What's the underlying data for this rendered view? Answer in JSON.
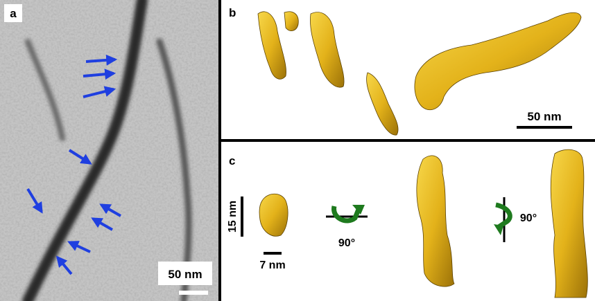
{
  "panels": [
    {
      "label": "a",
      "scale_bar": "50 nm"
    },
    {
      "label": "b",
      "scale_bar": "50 nm"
    },
    {
      "label": "c",
      "scale_bars": [
        "15 nm",
        "7 nm"
      ],
      "rotations": [
        "90°",
        "90°"
      ]
    }
  ]
}
